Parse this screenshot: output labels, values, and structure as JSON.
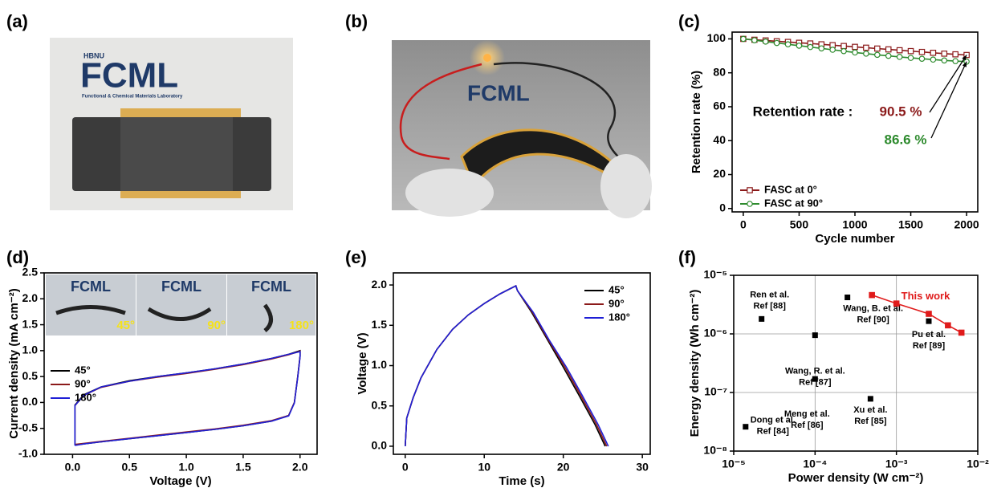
{
  "panel_labels": [
    "(a)",
    "(b)",
    "(c)",
    "(d)",
    "(e)",
    "(f)"
  ],
  "photo_a": {
    "org": "HBNU",
    "logo": "FCML",
    "lab": "Functional & Chemical Materials Laboratory"
  },
  "photo_b": {
    "logo": "FCML"
  },
  "photo_d": {
    "logo": "FCML",
    "angles": [
      "45°",
      "90°",
      "180°"
    ]
  },
  "chart_data": [
    {
      "type": "line",
      "xlabel": "Cycle number",
      "ylabel": "Retention rate (%)",
      "x": [
        0,
        100,
        200,
        300,
        400,
        500,
        600,
        700,
        800,
        900,
        1000,
        1100,
        1200,
        1300,
        1400,
        1500,
        1600,
        1700,
        1800,
        1900,
        2000
      ],
      "series": [
        {
          "name": "FASC at 0°",
          "color": "#8b1a1a",
          "marker": "square",
          "values": [
            100,
            99.5,
            99.1,
            98.6,
            98.2,
            97.7,
            97.3,
            96.8,
            96.3,
            95.8,
            95.3,
            94.8,
            94.3,
            93.8,
            93.3,
            92.8,
            92.3,
            91.8,
            91.3,
            90.9,
            90.5
          ]
        },
        {
          "name": "FASC at 90°",
          "color": "#2e8b2e",
          "marker": "circle",
          "values": [
            100,
            99.2,
            98.4,
            97.6,
            96.8,
            96.0,
            95.2,
            94.4,
            93.6,
            92.8,
            92.0,
            91.3,
            90.6,
            90.0,
            89.4,
            88.8,
            88.3,
            87.8,
            87.3,
            86.9,
            86.6
          ]
        }
      ],
      "annotations": [
        {
          "text": "Retention rate :",
          "color": "#000000"
        },
        {
          "text": "90.5 %",
          "color": "#8b1a1a"
        },
        {
          "text": "86.6 %",
          "color": "#2e8b2e"
        }
      ],
      "xlim": [
        -100,
        2100
      ],
      "xticks": [
        0,
        500,
        1000,
        1500,
        2000
      ],
      "ylim": [
        -2,
        104
      ],
      "yticks": [
        0,
        20,
        40,
        60,
        80,
        100
      ],
      "legend": "lower left",
      "grid": false
    },
    {
      "type": "line",
      "xlabel": "Voltage (V)",
      "ylabel": "Current density (mA cm⁻²)",
      "series": [
        {
          "name": "45°",
          "color": "#000000",
          "x": [
            0.02,
            0.02,
            0.1,
            0.25,
            0.5,
            0.75,
            1.0,
            1.25,
            1.5,
            1.75,
            1.9,
            2.0,
            2.0,
            1.98,
            1.95,
            1.9,
            1.75,
            1.5,
            1.25,
            1.0,
            0.75,
            0.5,
            0.25,
            0.1,
            0.02
          ],
          "values": [
            -0.82,
            -0.05,
            0.15,
            0.3,
            0.42,
            0.5,
            0.57,
            0.65,
            0.74,
            0.85,
            0.93,
            1.0,
            0.9,
            0.5,
            0.0,
            -0.25,
            -0.36,
            -0.45,
            -0.52,
            -0.58,
            -0.64,
            -0.7,
            -0.76,
            -0.8,
            -0.82
          ]
        },
        {
          "name": "90°",
          "color": "#8b1a1a",
          "x": [
            0.02,
            0.02,
            0.1,
            0.25,
            0.5,
            0.75,
            1.0,
            1.25,
            1.5,
            1.75,
            1.9,
            2.0,
            2.0,
            1.98,
            1.95,
            1.9,
            1.75,
            1.5,
            1.25,
            1.0,
            0.75,
            0.5,
            0.25,
            0.1,
            0.02
          ],
          "values": [
            -0.81,
            -0.06,
            0.14,
            0.29,
            0.41,
            0.49,
            0.56,
            0.64,
            0.73,
            0.84,
            0.92,
            0.99,
            0.89,
            0.5,
            0.0,
            -0.25,
            -0.35,
            -0.44,
            -0.51,
            -0.57,
            -0.63,
            -0.69,
            -0.75,
            -0.79,
            -0.81
          ]
        },
        {
          "name": "180°",
          "color": "#1f1fd6",
          "x": [
            0.02,
            0.02,
            0.1,
            0.25,
            0.5,
            0.75,
            1.0,
            1.25,
            1.5,
            1.75,
            1.9,
            2.0,
            2.0,
            1.98,
            1.95,
            1.9,
            1.75,
            1.5,
            1.25,
            1.0,
            0.75,
            0.5,
            0.25,
            0.1,
            0.02
          ],
          "values": [
            -0.83,
            -0.06,
            0.14,
            0.3,
            0.41,
            0.5,
            0.57,
            0.65,
            0.74,
            0.85,
            0.93,
            0.98,
            0.88,
            0.49,
            -0.01,
            -0.26,
            -0.36,
            -0.45,
            -0.52,
            -0.58,
            -0.64,
            -0.7,
            -0.76,
            -0.8,
            -0.83
          ]
        }
      ],
      "xlim": [
        -0.25,
        2.15
      ],
      "xticks": [
        {
          "value": 0,
          "label": "0.0"
        },
        {
          "value": 0.5,
          "label": "0.5"
        },
        {
          "value": 1,
          "label": "1.0"
        },
        {
          "value": 1.5,
          "label": "1.5"
        },
        {
          "value": 2,
          "label": "2.0"
        }
      ],
      "ylim": [
        -1,
        2.5
      ],
      "yticks": [
        {
          "value": -1,
          "label": "-1.0"
        },
        {
          "value": -0.5,
          "label": "-0.5"
        },
        {
          "value": 0,
          "label": "0.0"
        },
        {
          "value": 0.5,
          "label": "0.5"
        },
        {
          "value": 1,
          "label": "1.0"
        },
        {
          "value": 1.5,
          "label": "1.5"
        },
        {
          "value": 2,
          "label": "2.0"
        },
        {
          "value": 2.5,
          "label": "2.5"
        }
      ],
      "legend": "center left",
      "grid": false
    },
    {
      "type": "line",
      "xlabel": "Time (s)",
      "ylabel": "Voltage (V)",
      "series": [
        {
          "name": "45°",
          "color": "#000000",
          "x": [
            0,
            0.2,
            1,
            2,
            4,
            6,
            8,
            10,
            12,
            14,
            14.2,
            16,
            18,
            20,
            22,
            24,
            25.3
          ],
          "values": [
            0,
            0.35,
            0.6,
            0.85,
            1.2,
            1.45,
            1.63,
            1.77,
            1.89,
            1.99,
            1.93,
            1.66,
            1.32,
            0.98,
            0.63,
            0.27,
            0
          ]
        },
        {
          "name": "90°",
          "color": "#8b1a1a",
          "x": [
            0,
            0.2,
            1,
            2,
            4,
            6,
            8,
            10,
            12,
            14,
            14.2,
            16.1,
            18.1,
            20.2,
            22.2,
            24.2,
            25.5
          ],
          "values": [
            0,
            0.35,
            0.6,
            0.85,
            1.2,
            1.45,
            1.63,
            1.77,
            1.89,
            1.99,
            1.93,
            1.66,
            1.32,
            0.98,
            0.63,
            0.27,
            0
          ]
        },
        {
          "name": "180°",
          "color": "#1f1fd6",
          "x": [
            0,
            0.2,
            1,
            2,
            4,
            6,
            8,
            10,
            12,
            14,
            14.2,
            16.2,
            18.2,
            20.4,
            22.4,
            24.4,
            25.7
          ],
          "values": [
            0,
            0.35,
            0.6,
            0.85,
            1.2,
            1.45,
            1.63,
            1.77,
            1.89,
            1.99,
            1.93,
            1.66,
            1.32,
            0.98,
            0.63,
            0.27,
            0
          ]
        }
      ],
      "xlim": [
        -1.5,
        31
      ],
      "xticks": [
        0,
        10,
        20,
        30
      ],
      "ylim": [
        -0.1,
        2.15
      ],
      "yticks": [
        {
          "value": 0,
          "label": "0.0"
        },
        {
          "value": 0.5,
          "label": "0.5"
        },
        {
          "value": 1,
          "label": "1.0"
        },
        {
          "value": 1.5,
          "label": "1.5"
        },
        {
          "value": 2,
          "label": "2.0"
        }
      ],
      "legend": "upper right",
      "grid": false
    },
    {
      "type": "scatter",
      "xlabel": "Power density (W cm⁻²)",
      "ylabel": "Energy density (Wh cm⁻²)",
      "log_x": true,
      "log_y": true,
      "grid": true,
      "point_color": "#000000",
      "points": [
        {
          "x": 1.4e-05,
          "y": 2.6e-08,
          "label": [
            "Dong et al.",
            "Ref [84]"
          ]
        },
        {
          "x": 2.2e-05,
          "y": 1.8e-06,
          "label": [
            "Ren et al.",
            "Ref [88]"
          ]
        },
        {
          "x": 0.0001,
          "y": 9.5e-07,
          "label": [
            "Wang, R. et al.",
            "Ref [87]"
          ]
        },
        {
          "x": 0.0001,
          "y": 1.7e-07,
          "label": [
            "Meng et al.",
            "Ref [86]"
          ]
        },
        {
          "x": 0.00025,
          "y": 4.2e-06,
          "label": [
            "Wang, B. et al.",
            "Ref [90]"
          ]
        },
        {
          "x": 0.00048,
          "y": 7.8e-08,
          "label": [
            "Xu et al.",
            "Ref [85]"
          ]
        },
        {
          "x": 0.0025,
          "y": 1.65e-06,
          "label": [
            "Pu et al.",
            "Ref [89]"
          ]
        }
      ],
      "series": [
        {
          "name": "This work",
          "color": "#e01b1b",
          "x": [
            0.0005,
            0.001,
            0.0025,
            0.0043,
            0.0063
          ],
          "values": [
            4.6e-06,
            3.3e-06,
            2.2e-06,
            1.4e-06,
            1.05e-06
          ]
        }
      ],
      "xlim": [
        1e-05,
        0.01
      ],
      "xticks": [
        {
          "value": 1e-05,
          "label": "10⁻⁵"
        },
        {
          "value": 0.0001,
          "label": "10⁻⁴"
        },
        {
          "value": 0.001,
          "label": "10⁻³"
        },
        {
          "value": 0.01,
          "label": "10⁻²"
        }
      ],
      "ylim": [
        1e-08,
        1e-05
      ],
      "yticks": [
        {
          "value": 1e-08,
          "label": "10⁻⁸"
        },
        {
          "value": 1e-07,
          "label": "10⁻⁷"
        },
        {
          "value": 1e-06,
          "label": "10⁻⁶"
        },
        {
          "value": 1e-05,
          "label": "10⁻⁵"
        }
      ]
    }
  ]
}
